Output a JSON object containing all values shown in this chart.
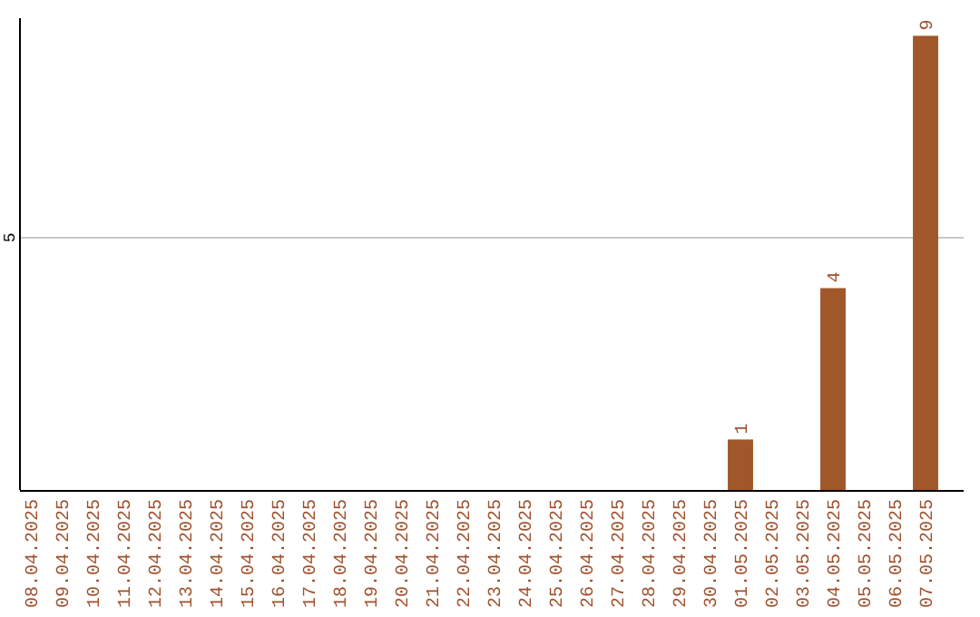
{
  "chart_data": {
    "type": "bar",
    "categories": [
      "08.04.2025",
      "09.04.2025",
      "10.04.2025",
      "11.04.2025",
      "12.04.2025",
      "13.04.2025",
      "14.04.2025",
      "15.04.2025",
      "16.04.2025",
      "17.04.2025",
      "18.04.2025",
      "19.04.2025",
      "20.04.2025",
      "21.04.2025",
      "22.04.2025",
      "23.04.2025",
      "24.04.2025",
      "25.04.2025",
      "26.04.2025",
      "27.04.2025",
      "28.04.2025",
      "29.04.2025",
      "30.04.2025",
      "01.05.2025",
      "02.05.2025",
      "03.05.2025",
      "04.05.2025",
      "05.05.2025",
      "06.05.2025",
      "07.05.2025"
    ],
    "values": [
      null,
      null,
      null,
      null,
      null,
      null,
      null,
      null,
      null,
      null,
      null,
      null,
      null,
      null,
      null,
      null,
      null,
      null,
      null,
      null,
      null,
      null,
      null,
      1,
      null,
      null,
      4,
      null,
      null,
      9
    ],
    "data_labels": true,
    "color": "#a0572a",
    "ylim": [
      0,
      9.35
    ],
    "yticks": [
      {
        "value": 0,
        "label": null
      },
      5
    ],
    "grid": "y"
  }
}
